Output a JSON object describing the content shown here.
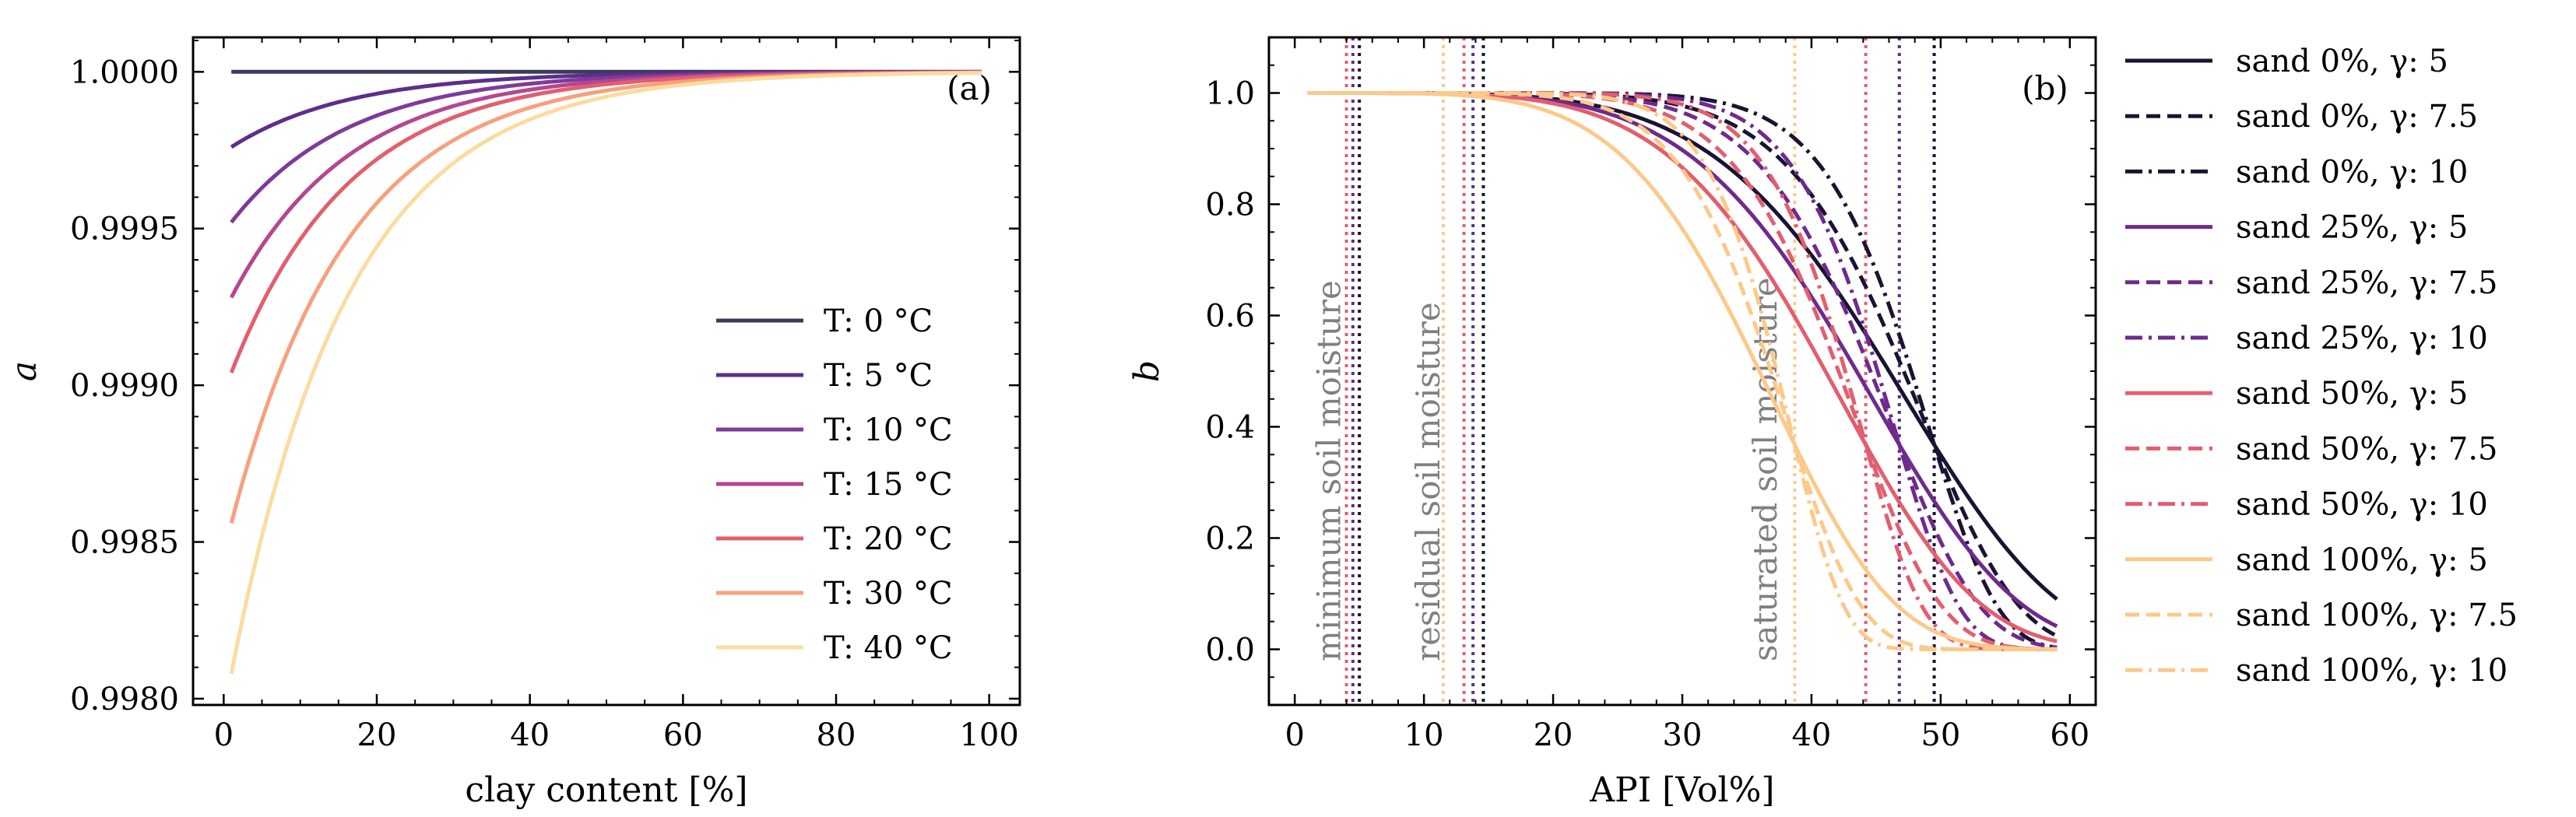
{
  "chart_data": [
    {
      "type": "line",
      "panel_label": "(a)",
      "xlabel": "clay content [%]",
      "ylabel": "a",
      "xlim": [
        -4,
        104
      ],
      "ylim": [
        0.99798,
        1.00011
      ],
      "xticks": [
        0,
        20,
        40,
        60,
        80,
        100
      ],
      "xtick_labels": [
        "0",
        "20",
        "40",
        "60",
        "80",
        "100"
      ],
      "yticks": [
        0.998,
        0.9985,
        0.999,
        0.9995,
        1.0
      ],
      "ytick_labels": [
        "0.9980",
        "0.9985",
        "0.9990",
        "0.9995",
        "1.0000"
      ],
      "grid": false,
      "legend_position": "lower-right",
      "x_range": [
        1,
        99
      ],
      "series": [
        {
          "name": "T: 0 °C",
          "color": "#3b3b5a",
          "a_at_1": 1.0,
          "decay": 0.065
        },
        {
          "name": "T: 5 °C",
          "color": "#5d2e8c",
          "a_at_1": 0.99976,
          "decay": 0.065
        },
        {
          "name": "T: 10 °C",
          "color": "#7e3a99",
          "a_at_1": 0.99952,
          "decay": 0.065
        },
        {
          "name": "T: 15 °C",
          "color": "#b5468f",
          "a_at_1": 0.99928,
          "decay": 0.065
        },
        {
          "name": "T: 20 °C",
          "color": "#e35e6e",
          "a_at_1": 0.99904,
          "decay": 0.065
        },
        {
          "name": "T: 30 °C",
          "color": "#f7a07d",
          "a_at_1": 0.99856,
          "decay": 0.065
        },
        {
          "name": "T: 40 °C",
          "color": "#fcdba0",
          "a_at_1": 0.99808,
          "decay": 0.065
        }
      ]
    },
    {
      "type": "line",
      "panel_label": "(b)",
      "xlabel": "API [Vol%]",
      "ylabel": "b",
      "xlim": [
        -2,
        62
      ],
      "ylim": [
        -0.1,
        1.1
      ],
      "xticks": [
        0,
        10,
        20,
        30,
        40,
        50,
        60
      ],
      "xtick_labels": [
        "0",
        "10",
        "20",
        "30",
        "40",
        "50",
        "60"
      ],
      "yticks": [
        0.0,
        0.2,
        0.4,
        0.6,
        0.8,
        1.0
      ],
      "ytick_labels": [
        "0.0",
        "0.2",
        "0.4",
        "0.6",
        "0.8",
        "1.0"
      ],
      "grid": false,
      "legend_position": "outside-right",
      "x_range": [
        1,
        59
      ],
      "annotations": [
        {
          "text": "minimum soil moisture",
          "x": 3.5
        },
        {
          "text": "residual soil moisture",
          "x": 11.2
        },
        {
          "text": "saturated soil moisture",
          "x": 37.3
        }
      ],
      "vlines": [
        {
          "x": 4.0,
          "color": "#e35e6e"
        },
        {
          "x": 4.5,
          "color": "#5d2e8c"
        },
        {
          "x": 5.0,
          "color": "#1a1333"
        },
        {
          "x": 11.5,
          "color": "#fcc98a"
        },
        {
          "x": 13.1,
          "color": "#e35e6e"
        },
        {
          "x": 13.8,
          "color": "#5d2e8c"
        },
        {
          "x": 14.6,
          "color": "#1a1333"
        },
        {
          "x": 38.7,
          "color": "#fcc98a"
        },
        {
          "x": 44.2,
          "color": "#e35e6e"
        },
        {
          "x": 46.8,
          "color": "#5d2e8c"
        },
        {
          "x": 49.5,
          "color": "#1a1333"
        }
      ],
      "series": [
        {
          "name": "sand 0%, γ: 5",
          "color": "#1a1333",
          "dash": "solid",
          "x_sat": 49.5,
          "gamma": 5
        },
        {
          "name": "sand 0%, γ: 7.5",
          "color": "#1a1333",
          "dash": "dashed",
          "x_sat": 49.5,
          "gamma": 7.5
        },
        {
          "name": "sand 0%, γ: 10",
          "color": "#1a1333",
          "dash": "dashdot",
          "x_sat": 49.5,
          "gamma": 10
        },
        {
          "name": "sand 25%, γ: 5",
          "color": "#6f2a8c",
          "dash": "solid",
          "x_sat": 46.8,
          "gamma": 5
        },
        {
          "name": "sand 25%, γ: 7.5",
          "color": "#6f2a8c",
          "dash": "dashed",
          "x_sat": 46.8,
          "gamma": 7.5
        },
        {
          "name": "sand 25%, γ: 10",
          "color": "#6f2a8c",
          "dash": "dashdot",
          "x_sat": 46.8,
          "gamma": 10
        },
        {
          "name": "sand 50%, γ: 5",
          "color": "#e35e6e",
          "dash": "solid",
          "x_sat": 44.2,
          "gamma": 5
        },
        {
          "name": "sand 50%, γ: 7.5",
          "color": "#e35e6e",
          "dash": "dashed",
          "x_sat": 44.2,
          "gamma": 7.5
        },
        {
          "name": "sand 50%, γ: 10",
          "color": "#e35e6e",
          "dash": "dashdot",
          "x_sat": 44.2,
          "gamma": 10
        },
        {
          "name": "sand 100%, γ: 5",
          "color": "#fcc98a",
          "dash": "solid",
          "x_sat": 38.7,
          "gamma": 5
        },
        {
          "name": "sand 100%, γ: 7.5",
          "color": "#fcc98a",
          "dash": "dashed",
          "x_sat": 38.7,
          "gamma": 7.5
        },
        {
          "name": "sand 100%, γ: 10",
          "color": "#fcc98a",
          "dash": "dashdot",
          "x_sat": 38.7,
          "gamma": 10
        }
      ]
    }
  ]
}
